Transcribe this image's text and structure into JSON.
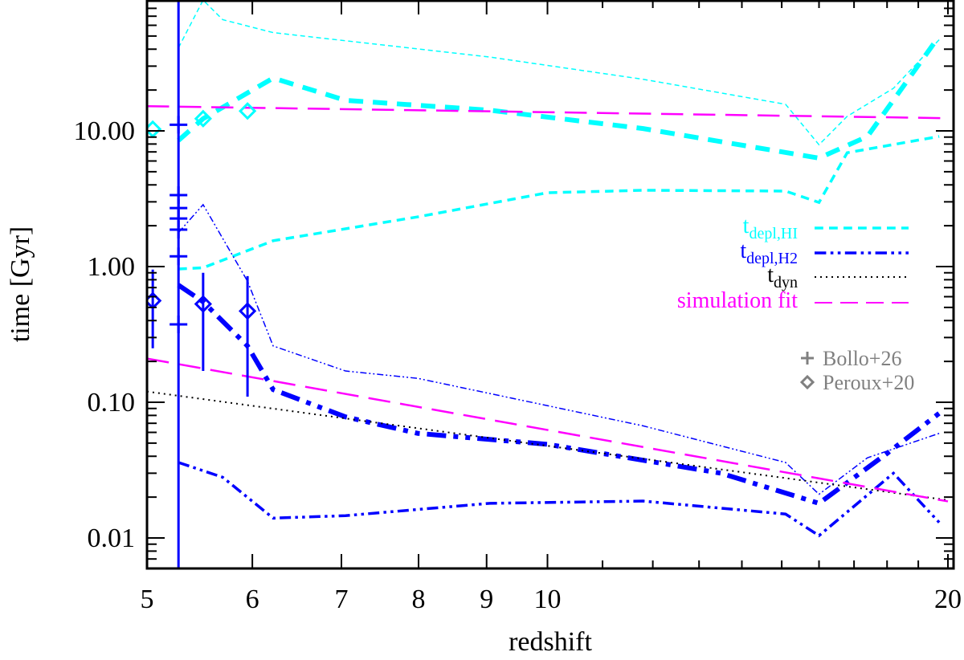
{
  "chart_data": {
    "type": "line",
    "xlabel": "redshift",
    "ylabel": "time [Gyr]",
    "xscale": "log",
    "yscale": "log",
    "xlim": [
      5,
      20
    ],
    "ylim": [
      0.0059,
      93
    ],
    "xticks": [
      5,
      6,
      7,
      8,
      9,
      10,
      20
    ],
    "xtick_labels": [
      "5",
      "6",
      "7",
      "8",
      "9",
      "10",
      "20"
    ],
    "yticks": [
      0.01,
      0.1,
      1,
      10
    ],
    "ytick_labels": [
      "0.01",
      "0.10",
      "1.00",
      "10.00"
    ],
    "grid": false,
    "legend_position": "right",
    "series": [
      {
        "name": "t_depl,HI",
        "legend_main": "t",
        "legend_sub": "depl,HI",
        "color": "#00ffff",
        "dash": "dashed",
        "width": 6,
        "x": [
          5.28,
          5.51,
          6.22,
          7.05,
          9.05,
          11.8,
          16.0,
          17.4,
          19.7
        ],
        "y": [
          8.5,
          12.3,
          24.5,
          16.8,
          14.2,
          10.4,
          6.3,
          9.1,
          50
        ]
      },
      {
        "color": "#00ffff",
        "dash": "dashed",
        "width": 1.5,
        "x": [
          5.28,
          5.51,
          5.7,
          6.22,
          9.05,
          11.8,
          15.1,
          16.0,
          16.8,
          18.2,
          19.7
        ],
        "y": [
          41,
          92,
          66,
          53,
          35,
          24,
          15.7,
          7.9,
          12.8,
          20.6,
          47
        ]
      },
      {
        "color": "#00ffff",
        "dash": "dashed",
        "width": 3.5,
        "x": [
          5.28,
          5.51,
          6.22,
          8.0,
          10,
          11.8,
          15.1,
          16.0,
          16.8,
          19.7
        ],
        "y": [
          0.96,
          0.98,
          1.55,
          2.33,
          3.5,
          3.65,
          3.6,
          2.97,
          6.9,
          9.1
        ]
      },
      {
        "name": "t_depl,H2",
        "legend_main": "t",
        "legend_sub": "depl,H2",
        "color": "#0000ff",
        "dash": "dashdotdot",
        "width": 6,
        "x": [
          5.28,
          5.51,
          5.95,
          6.22,
          7.05,
          7.99,
          10,
          13.5,
          16.0,
          18.0,
          19.7
        ],
        "y": [
          0.73,
          0.55,
          0.26,
          0.124,
          0.078,
          0.059,
          0.049,
          0.03,
          0.018,
          0.042,
          0.083
        ]
      },
      {
        "color": "#0000ff",
        "dash": "dashdotdot",
        "width": 1.5,
        "x": [
          5.28,
          5.51,
          5.95,
          6.22,
          7.05,
          7.99,
          9.05,
          11.8,
          15.1,
          16.0,
          17.4,
          19.7
        ],
        "y": [
          1.78,
          2.86,
          0.78,
          0.26,
          0.17,
          0.15,
          0.116,
          0.067,
          0.036,
          0.021,
          0.039,
          0.059
        ]
      },
      {
        "color": "#0000ff",
        "dash": "dashdotdot",
        "width": 3.5,
        "x": [
          5.28,
          5.7,
          6.22,
          7.05,
          9.05,
          11.8,
          15.1,
          16.0,
          18.2,
          19.7
        ],
        "y": [
          0.036,
          0.028,
          0.014,
          0.0146,
          0.018,
          0.0187,
          0.015,
          0.0104,
          0.03,
          0.013
        ]
      },
      {
        "name": "t_dyn",
        "legend_main": "t",
        "legend_sub": "dyn",
        "color": "#000000",
        "dash": "dotted",
        "width": 2,
        "x": [
          5,
          20
        ],
        "y": [
          0.12,
          0.019
        ]
      },
      {
        "name": "simulation fit",
        "legend_main": "simulation fit",
        "color": "#ff00ff",
        "dash": "longdash",
        "width": 2.5,
        "x": [
          5,
          20
        ],
        "y": [
          15.2,
          12.4
        ]
      },
      {
        "color": "#ff00ff",
        "dash": "longdash",
        "width": 2.5,
        "x": [
          5,
          20
        ],
        "y": [
          0.21,
          0.0186
        ]
      }
    ],
    "observations": [
      {
        "name": "Bollo+26",
        "marker": "plus",
        "legend_color": "#808080",
        "color": "#0000ff",
        "points": [
          {
            "x": 5.28,
            "y": 11.1
          },
          {
            "x": 5.28,
            "y": 3.36
          },
          {
            "x": 5.28,
            "y": 2.7
          },
          {
            "x": 5.28,
            "y": 2.26
          },
          {
            "x": 5.28,
            "y": 1.87
          },
          {
            "x": 5.28,
            "y": 1.19
          },
          {
            "x": 5.28,
            "y": 0.375
          }
        ],
        "errorbar": {
          "x": 5.28,
          "low": 0.0059,
          "high": 93
        }
      },
      {
        "name": "Peroux+20",
        "marker": "diamond",
        "legend_color": "#808080",
        "points": [
          {
            "x": 5.05,
            "y": 10.3,
            "color": "#00ffff"
          },
          {
            "x": 5.51,
            "y": 12.3,
            "color": "#00ffff"
          },
          {
            "x": 5.95,
            "y": 14.0,
            "color": "#00ffff"
          },
          {
            "x": 5.05,
            "y": 0.56,
            "low": 0.25,
            "high": 0.95,
            "color": "#0000ff"
          },
          {
            "x": 5.51,
            "y": 0.53,
            "low": 0.17,
            "high": 0.9,
            "color": "#0000ff"
          },
          {
            "x": 5.95,
            "y": 0.47,
            "low": 0.11,
            "high": 0.85,
            "color": "#0000ff"
          }
        ]
      }
    ]
  }
}
